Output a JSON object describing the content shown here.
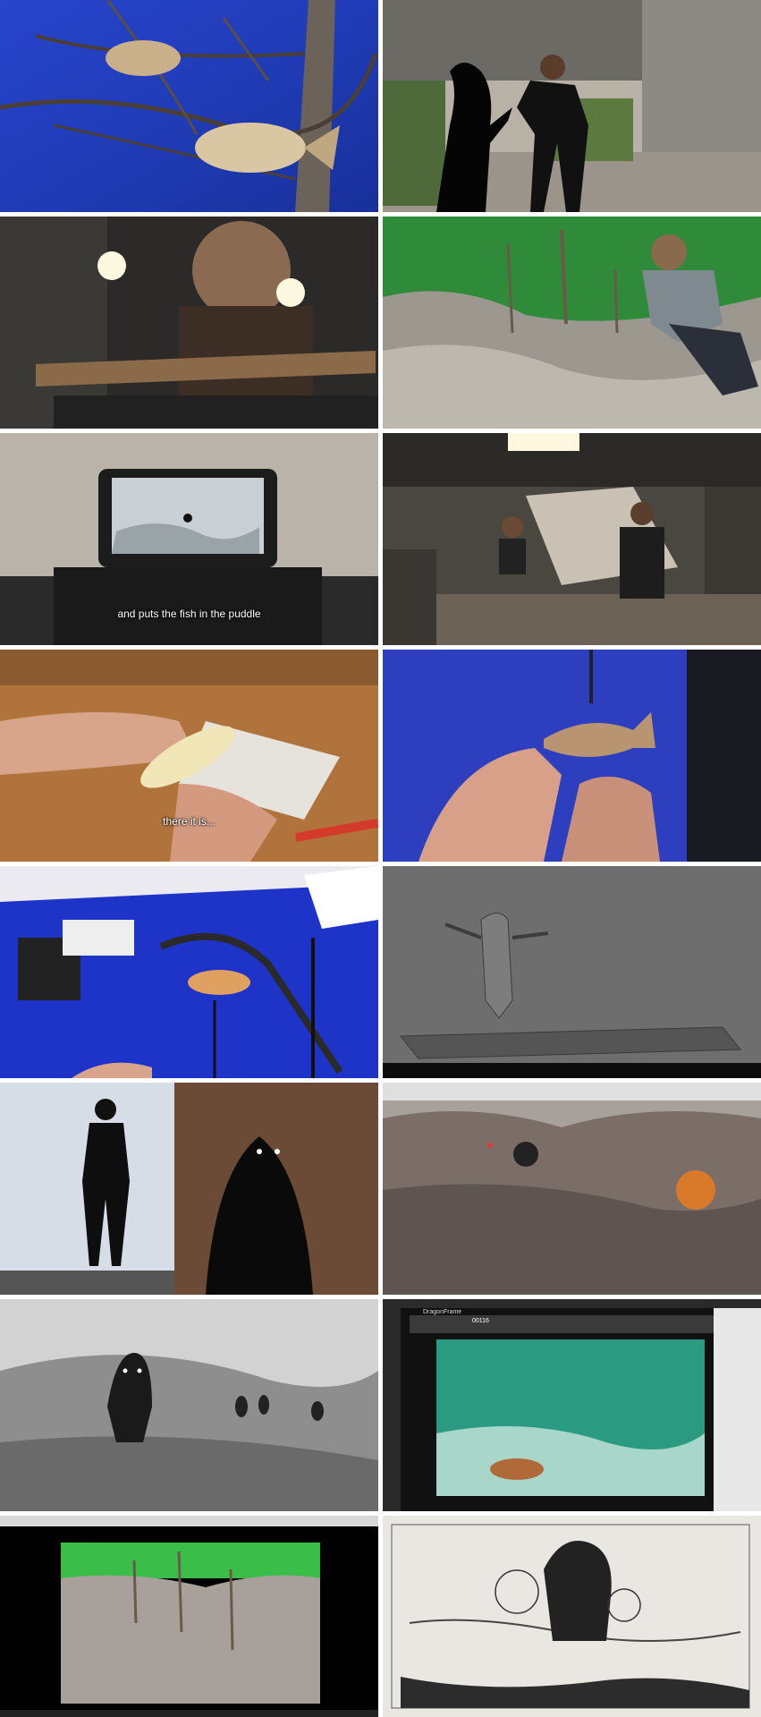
{
  "frames": [
    {
      "id": 1,
      "caption": ""
    },
    {
      "id": 2,
      "caption": ""
    },
    {
      "id": 3,
      "caption": ""
    },
    {
      "id": 4,
      "caption": ""
    },
    {
      "id": 5,
      "caption": "and puts the fish in the puddle"
    },
    {
      "id": 6,
      "caption": ""
    },
    {
      "id": 7,
      "caption": "there it is..."
    },
    {
      "id": 8,
      "caption": ""
    },
    {
      "id": 9,
      "caption": ""
    },
    {
      "id": 10,
      "caption": ""
    },
    {
      "id": 11,
      "caption": ""
    },
    {
      "id": 12,
      "caption": ""
    },
    {
      "id": 13,
      "caption": ""
    },
    {
      "id": 14,
      "caption": ""
    },
    {
      "id": 15,
      "caption": ""
    },
    {
      "id": 16,
      "caption": ""
    }
  ],
  "screen_ui": {
    "dragonframe_title": "DragonFrame",
    "frame_counter": "00116"
  }
}
